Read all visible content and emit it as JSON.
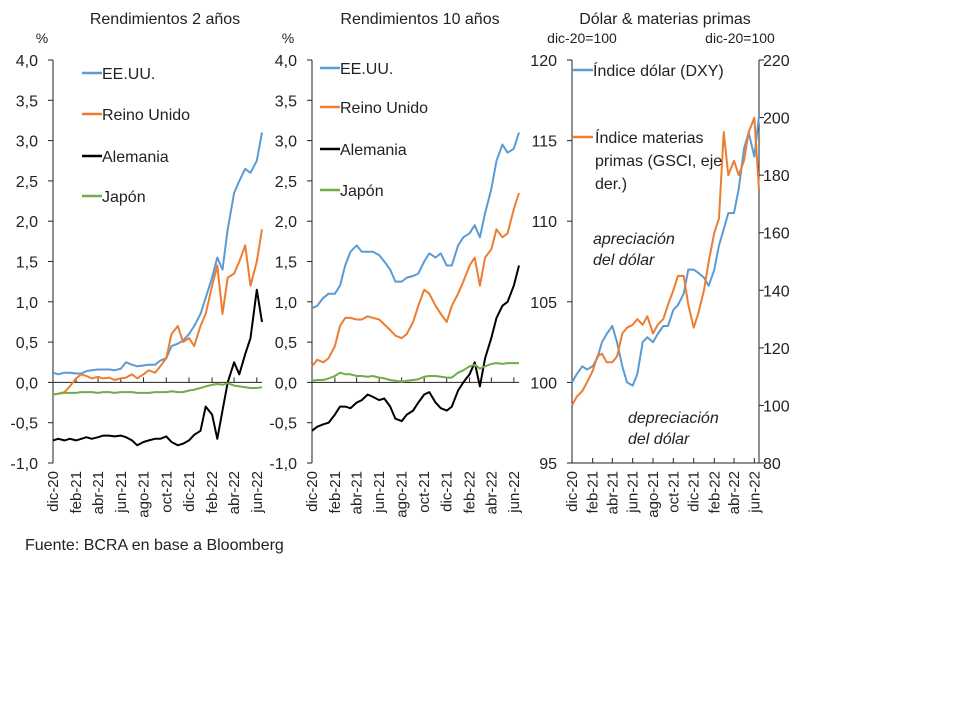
{
  "source": "Fuente: BCRA en base a Bloomberg",
  "x_dates": [
    "2020-12-01",
    "2020-12-15",
    "2021-01-01",
    "2021-01-15",
    "2021-02-01",
    "2021-02-15",
    "2021-03-01",
    "2021-03-15",
    "2021-04-01",
    "2021-04-15",
    "2021-05-01",
    "2021-05-15",
    "2021-06-01",
    "2021-06-15",
    "2021-07-01",
    "2021-07-15",
    "2021-08-01",
    "2021-08-15",
    "2021-09-01",
    "2021-09-15",
    "2021-10-01",
    "2021-10-15",
    "2021-11-01",
    "2021-11-15",
    "2021-12-01",
    "2021-12-15",
    "2022-01-01",
    "2022-01-15",
    "2022-02-01",
    "2022-02-15",
    "2022-03-01",
    "2022-03-15",
    "2022-04-01",
    "2022-04-15",
    "2022-05-01",
    "2022-05-15",
    "2022-06-01",
    "2022-06-15"
  ],
  "x_ticks": [
    {
      "label": "dic-20",
      "date": "2020-12-01"
    },
    {
      "label": "feb-21",
      "date": "2021-02-01"
    },
    {
      "label": "abr-21",
      "date": "2021-04-01"
    },
    {
      "label": "jun-21",
      "date": "2021-06-01"
    },
    {
      "label": "ago-21",
      "date": "2021-08-01"
    },
    {
      "label": "oct-21",
      "date": "2021-10-01"
    },
    {
      "label": "dic-21",
      "date": "2021-12-01"
    },
    {
      "label": "feb-22",
      "date": "2022-02-01"
    },
    {
      "label": "abr-22",
      "date": "2022-04-01"
    },
    {
      "label": "jun-22",
      "date": "2022-06-01"
    }
  ],
  "colors": {
    "blue": "#5b9bd5",
    "orange": "#ed7d31",
    "black": "#000000",
    "green": "#70ad47"
  },
  "chart_data": [
    {
      "type": "line",
      "title": "Rendimientos 2 años",
      "ylabel": "%",
      "ylim": [
        -1.0,
        4.0
      ],
      "yticks": [
        "4,0",
        "3,5",
        "3,0",
        "2,5",
        "2,0",
        "1,5",
        "1,0",
        "0,5",
        "0,0",
        "-0,5",
        "-1,0"
      ],
      "legend": "top-left",
      "series": [
        {
          "name": "EE.UU.",
          "color": "blue",
          "values": [
            0.12,
            0.1,
            0.12,
            0.12,
            0.11,
            0.11,
            0.14,
            0.15,
            0.16,
            0.16,
            0.16,
            0.15,
            0.17,
            0.25,
            0.22,
            0.2,
            0.21,
            0.22,
            0.22,
            0.27,
            0.3,
            0.45,
            0.48,
            0.52,
            0.6,
            0.7,
            0.85,
            1.05,
            1.3,
            1.55,
            1.4,
            1.9,
            2.35,
            2.5,
            2.65,
            2.6,
            2.75,
            3.1
          ]
        },
        {
          "name": "Reino Unido",
          "color": "orange",
          "values": [
            -0.15,
            -0.14,
            -0.12,
            -0.05,
            0.05,
            0.1,
            0.08,
            0.05,
            0.07,
            0.05,
            0.06,
            0.03,
            0.05,
            0.06,
            0.1,
            0.05,
            0.1,
            0.15,
            0.12,
            0.2,
            0.3,
            0.6,
            0.7,
            0.5,
            0.55,
            0.45,
            0.7,
            0.85,
            1.2,
            1.45,
            0.85,
            1.3,
            1.35,
            1.5,
            1.7,
            1.2,
            1.5,
            1.9
          ]
        },
        {
          "name": "Alemania",
          "color": "black",
          "values": [
            -0.72,
            -0.7,
            -0.72,
            -0.7,
            -0.72,
            -0.7,
            -0.68,
            -0.7,
            -0.68,
            -0.66,
            -0.66,
            -0.67,
            -0.66,
            -0.68,
            -0.72,
            -0.78,
            -0.74,
            -0.72,
            -0.7,
            -0.7,
            -0.67,
            -0.74,
            -0.78,
            -0.76,
            -0.72,
            -0.65,
            -0.6,
            -0.3,
            -0.4,
            -0.7,
            -0.35,
            0.0,
            0.25,
            0.1,
            0.35,
            0.55,
            1.15,
            0.75
          ]
        },
        {
          "name": "Japón",
          "color": "green",
          "values": [
            -0.15,
            -0.14,
            -0.13,
            -0.13,
            -0.13,
            -0.12,
            -0.12,
            -0.12,
            -0.13,
            -0.12,
            -0.12,
            -0.13,
            -0.12,
            -0.12,
            -0.12,
            -0.13,
            -0.13,
            -0.13,
            -0.12,
            -0.12,
            -0.12,
            -0.11,
            -0.12,
            -0.12,
            -0.1,
            -0.09,
            -0.07,
            -0.05,
            -0.03,
            -0.02,
            -0.03,
            -0.01,
            -0.04,
            -0.05,
            -0.06,
            -0.07,
            -0.07,
            -0.06
          ]
        }
      ]
    },
    {
      "type": "line",
      "title": "Rendimientos 10 años",
      "ylabel": "%",
      "ylim": [
        -1.0,
        4.0
      ],
      "yticks": [
        "4,0",
        "3,5",
        "3,0",
        "2,5",
        "2,0",
        "1,5",
        "1,0",
        "0,5",
        "0,0",
        "-0,5",
        "-1,0"
      ],
      "legend": "top-left",
      "series": [
        {
          "name": "EE.UU.",
          "color": "blue",
          "values": [
            0.92,
            0.95,
            1.05,
            1.1,
            1.1,
            1.2,
            1.45,
            1.62,
            1.7,
            1.62,
            1.62,
            1.62,
            1.58,
            1.5,
            1.4,
            1.25,
            1.25,
            1.3,
            1.32,
            1.35,
            1.5,
            1.6,
            1.55,
            1.6,
            1.45,
            1.45,
            1.7,
            1.8,
            1.85,
            1.95,
            1.8,
            2.1,
            2.4,
            2.75,
            2.95,
            2.85,
            2.9,
            3.1
          ]
        },
        {
          "name": "Reino Unido",
          "color": "orange",
          "values": [
            0.2,
            0.28,
            0.25,
            0.3,
            0.45,
            0.7,
            0.8,
            0.8,
            0.78,
            0.78,
            0.82,
            0.8,
            0.78,
            0.72,
            0.65,
            0.58,
            0.55,
            0.6,
            0.75,
            0.95,
            1.15,
            1.1,
            0.95,
            0.85,
            0.75,
            0.95,
            1.1,
            1.25,
            1.45,
            1.55,
            1.2,
            1.55,
            1.65,
            1.9,
            1.8,
            1.85,
            2.15,
            2.35
          ]
        },
        {
          "name": "Alemania",
          "color": "black",
          "values": [
            -0.6,
            -0.55,
            -0.52,
            -0.5,
            -0.4,
            -0.3,
            -0.3,
            -0.32,
            -0.25,
            -0.22,
            -0.15,
            -0.18,
            -0.22,
            -0.2,
            -0.3,
            -0.45,
            -0.48,
            -0.4,
            -0.35,
            -0.25,
            -0.15,
            -0.12,
            -0.25,
            -0.32,
            -0.35,
            -0.3,
            -0.1,
            0.0,
            0.1,
            0.25,
            -0.05,
            0.3,
            0.55,
            0.8,
            0.95,
            1.0,
            1.2,
            1.45
          ]
        },
        {
          "name": "Japón",
          "color": "green",
          "values": [
            0.02,
            0.03,
            0.03,
            0.05,
            0.08,
            0.12,
            0.1,
            0.1,
            0.08,
            0.08,
            0.07,
            0.08,
            0.06,
            0.05,
            0.03,
            0.02,
            0.01,
            0.02,
            0.03,
            0.04,
            0.07,
            0.08,
            0.08,
            0.07,
            0.06,
            0.06,
            0.12,
            0.15,
            0.2,
            0.22,
            0.17,
            0.2,
            0.23,
            0.24,
            0.23,
            0.24,
            0.24,
            0.24
          ]
        }
      ]
    },
    {
      "type": "line",
      "title": "Dólar & materias primas",
      "ylabel": "dic-20=100",
      "ylabel_right": "dic-20=100",
      "ylim": [
        95,
        120
      ],
      "ylim_right": [
        80,
        220
      ],
      "yticks": [
        "120",
        "115",
        "110",
        "105",
        "100",
        "95"
      ],
      "yticks_right": [
        "220",
        "200",
        "180",
        "160",
        "140",
        "120",
        "100",
        "80"
      ],
      "legend": "top-left",
      "annotations": [
        {
          "line1": "apreciación",
          "line2": "del dólar"
        },
        {
          "line1": "depreciación",
          "line2": "del dólar"
        }
      ],
      "series": [
        {
          "name": "Índice dólar (DXY)",
          "color": "blue",
          "axis": "left",
          "values": [
            100.0,
            100.5,
            101.0,
            100.8,
            101.0,
            101.5,
            102.5,
            103.0,
            103.5,
            102.5,
            101.0,
            100.0,
            99.8,
            100.5,
            102.5,
            102.8,
            102.5,
            103.0,
            103.5,
            103.5,
            104.5,
            104.8,
            105.5,
            107.0,
            107.0,
            106.8,
            106.5,
            106.0,
            107.0,
            108.5,
            109.5,
            110.5,
            110.5,
            112.0,
            114.5,
            115.5,
            114.0,
            116.5
          ]
        },
        {
          "name": "Índice materias primas (GSCI, eje der.)",
          "name_lines": [
            "Índice materias",
            "primas (GSCI, eje",
            "der.)"
          ],
          "color": "orange",
          "axis": "right",
          "values": [
            100,
            103,
            105,
            108,
            112,
            117,
            118,
            115,
            115,
            117,
            125,
            127,
            128,
            130,
            128,
            131,
            125,
            128,
            130,
            135,
            140,
            145,
            145,
            135,
            127,
            132,
            140,
            150,
            160,
            165,
            195,
            180,
            185,
            180,
            185,
            195,
            200,
            175
          ]
        }
      ]
    }
  ]
}
